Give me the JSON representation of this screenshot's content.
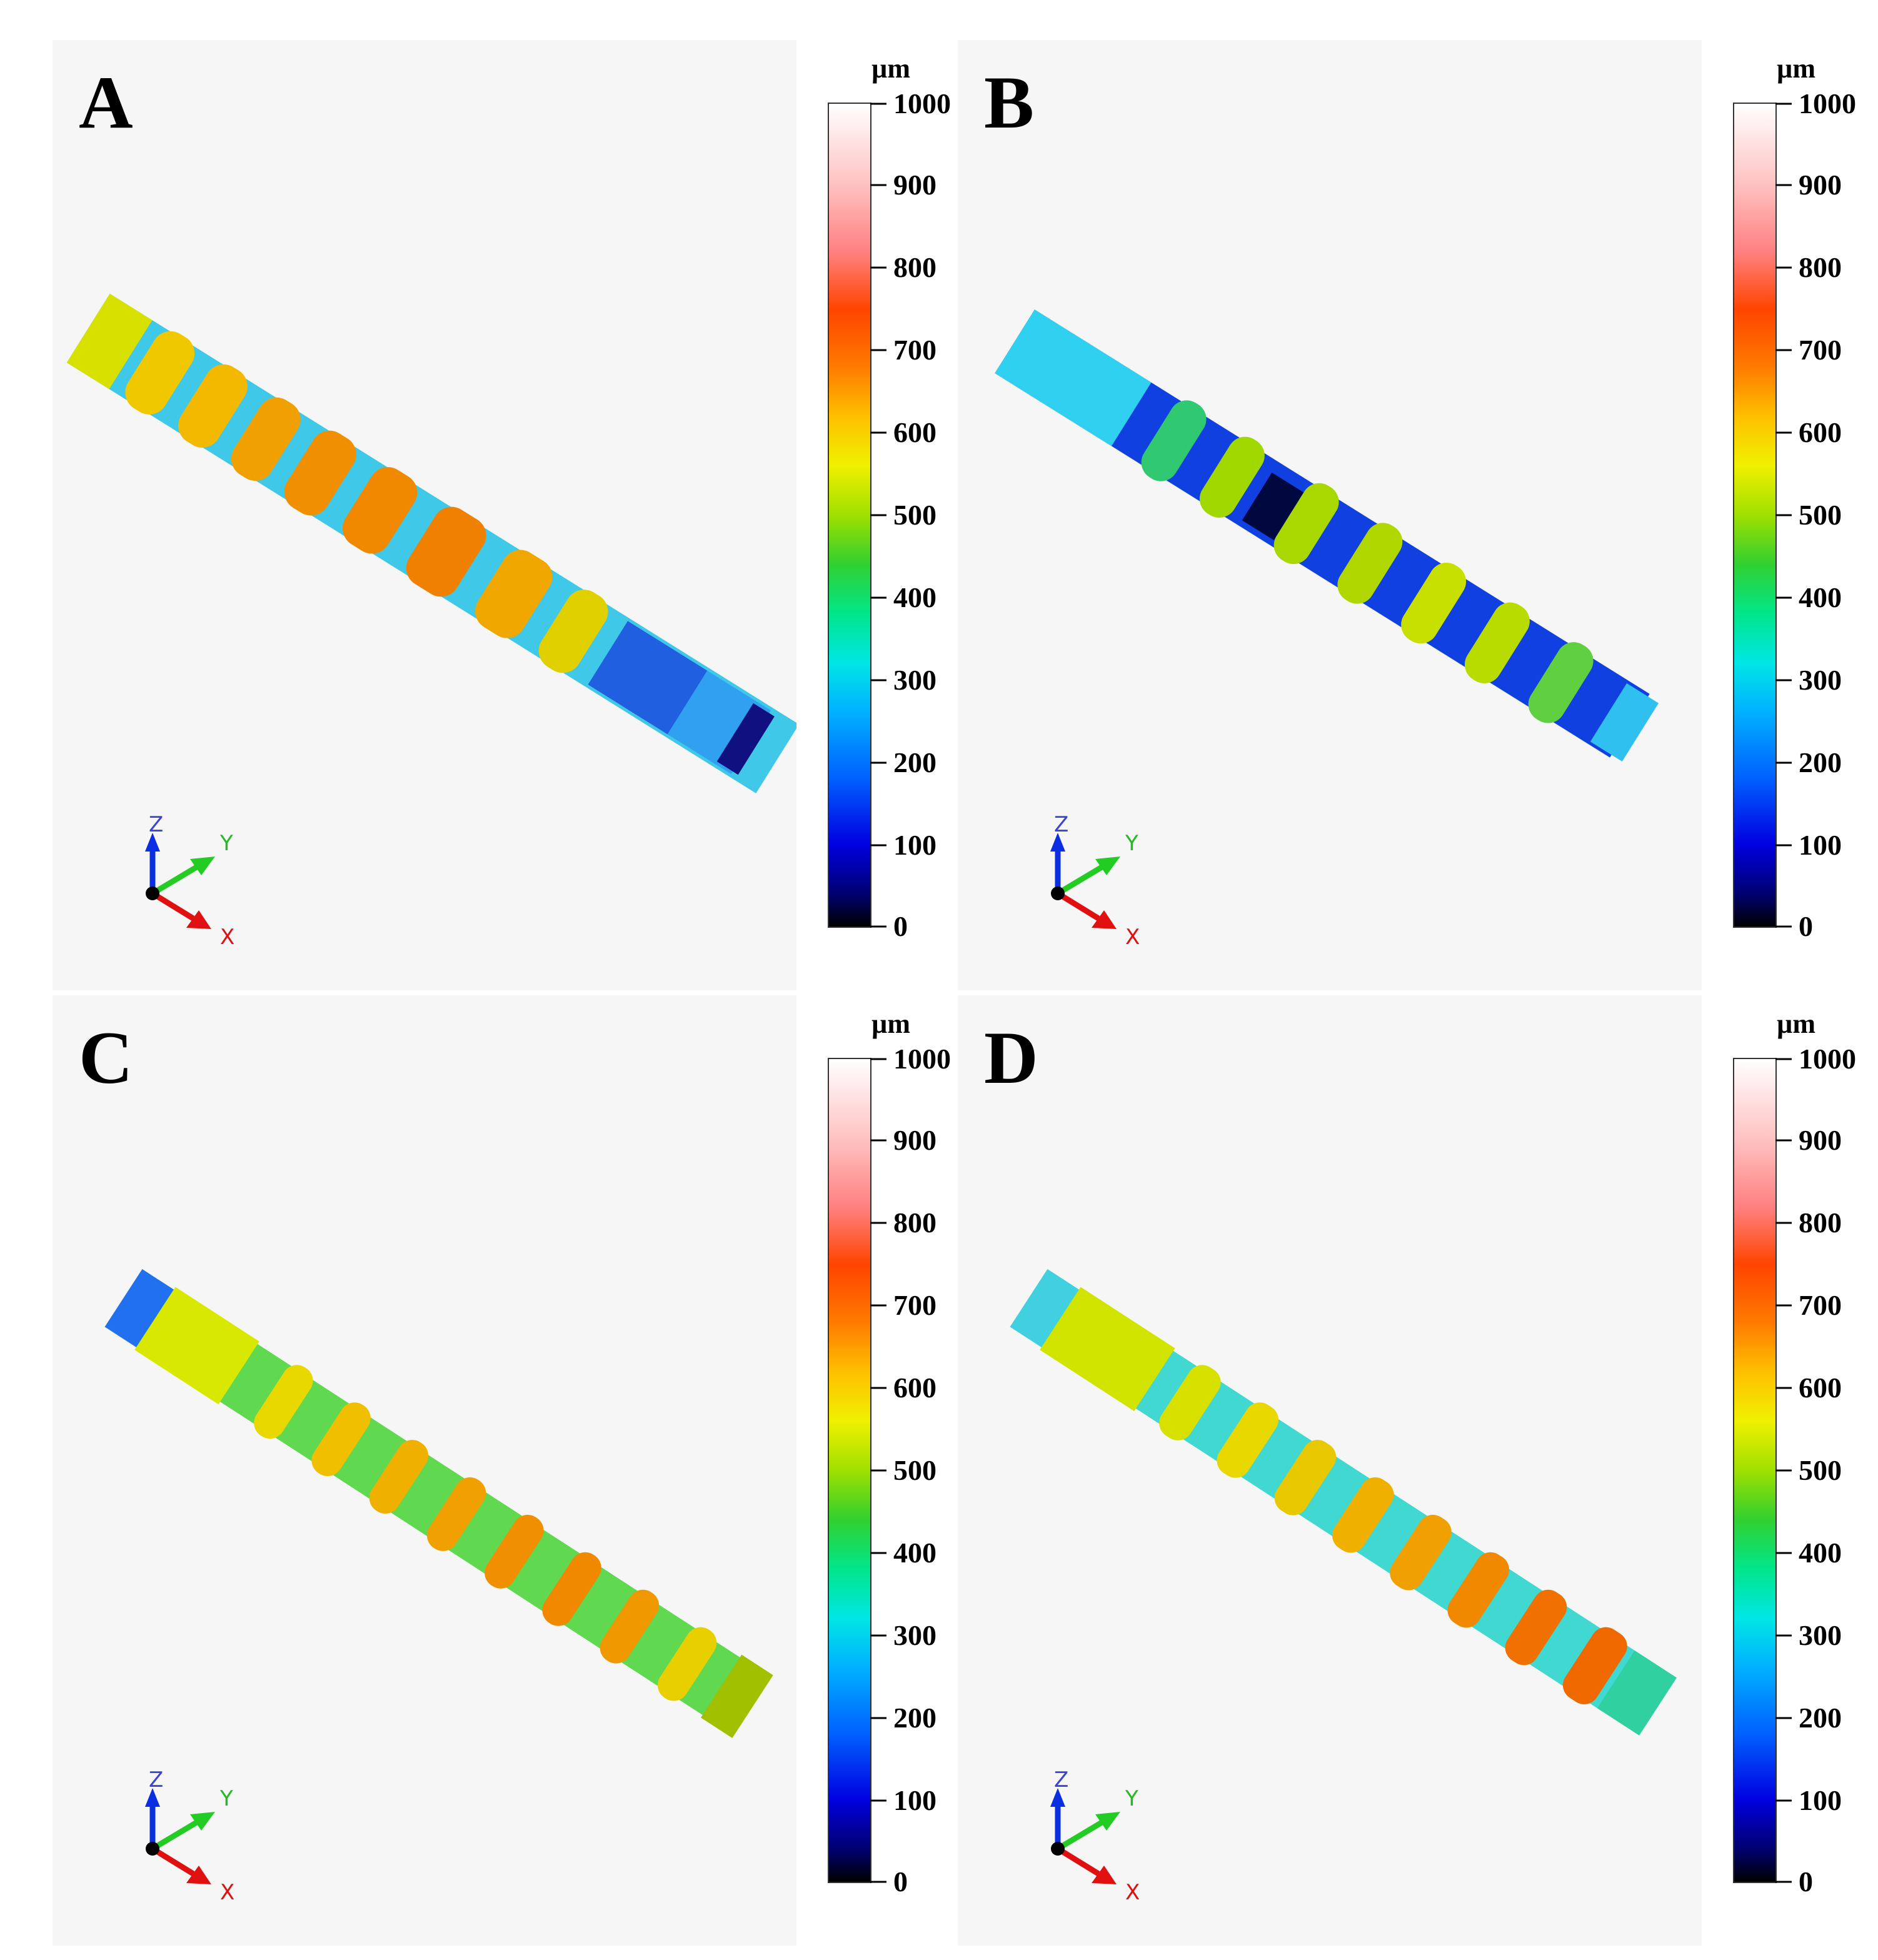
{
  "panels": [
    {
      "letter": "A"
    },
    {
      "letter": "B"
    },
    {
      "letter": "C"
    },
    {
      "letter": "D"
    }
  ],
  "colorbar": {
    "unit": "µm",
    "ticks": [
      "1000",
      "900",
      "800",
      "700",
      "600",
      "500",
      "400",
      "300",
      "200",
      "100",
      "0"
    ]
  },
  "axes": {
    "z": "Z",
    "y": "Y",
    "x": "X"
  }
}
